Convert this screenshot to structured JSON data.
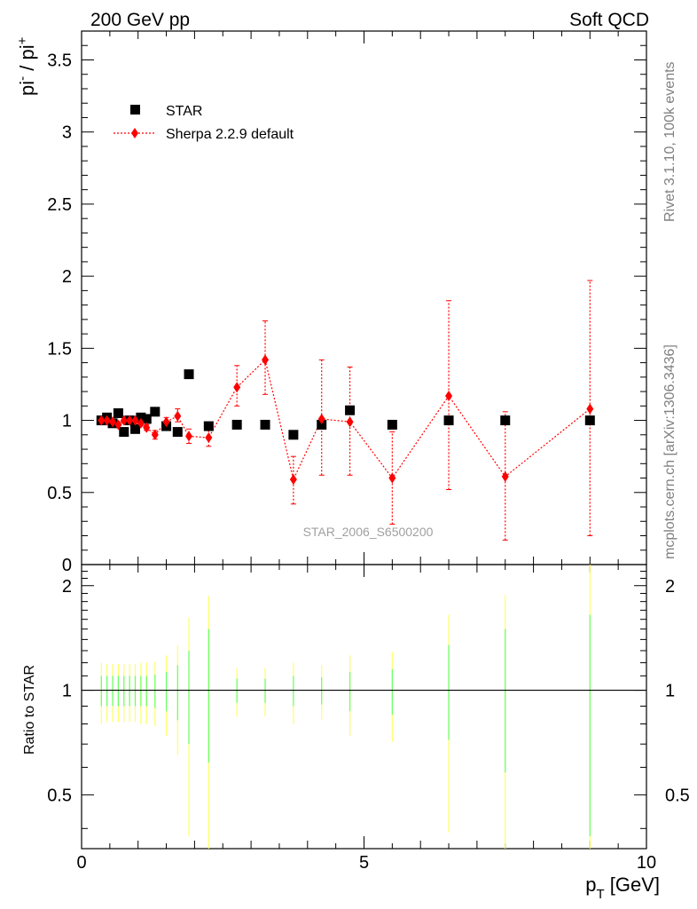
{
  "header": {
    "left": "200 GeV pp",
    "right": "Soft QCD"
  },
  "side_text": {
    "top": "Rivet 3.1.10,  100k events",
    "bottom": "mcplots.cern.ch [arXiv:1306.3436]"
  },
  "watermark": "STAR_2006_S6500200",
  "colors": {
    "data": "#000000",
    "mc": "#ff0000",
    "band_yellow": "#ffff66",
    "band_green": "#66ff66"
  },
  "chart_data": [
    {
      "type": "scatter",
      "ylabel_main": "pi",
      "ylabel_sup1": "-",
      "ylabel_mid": " / pi",
      "ylabel_sup2": "+",
      "xlim": [
        0,
        10
      ],
      "ylim": [
        0,
        3.7
      ],
      "yticks": [
        {
          "v": 0,
          "t": "0"
        },
        {
          "v": 0.5,
          "t": "0.5"
        },
        {
          "v": 1,
          "t": "1"
        },
        {
          "v": 1.5,
          "t": "1.5"
        },
        {
          "v": 2,
          "t": "2"
        },
        {
          "v": 2.5,
          "t": "2.5"
        },
        {
          "v": 3,
          "t": "3"
        },
        {
          "v": 3.5,
          "t": "3.5"
        }
      ],
      "legend": [
        {
          "label": "STAR",
          "marker": "square"
        },
        {
          "label": "Sherpa 2.2.9 default",
          "marker": "diamond"
        }
      ],
      "legend_position": "top-left",
      "series": [
        {
          "name": "STAR",
          "points": [
            {
              "x": 0.35,
              "y": 1.0
            },
            {
              "x": 0.45,
              "y": 1.02
            },
            {
              "x": 0.55,
              "y": 0.98
            },
            {
              "x": 0.65,
              "y": 1.05
            },
            {
              "x": 0.75,
              "y": 0.92
            },
            {
              "x": 0.85,
              "y": 1.0
            },
            {
              "x": 0.95,
              "y": 0.94
            },
            {
              "x": 1.05,
              "y": 1.02
            },
            {
              "x": 1.15,
              "y": 1.01
            },
            {
              "x": 1.3,
              "y": 1.06
            },
            {
              "x": 1.5,
              "y": 0.96
            },
            {
              "x": 1.7,
              "y": 0.92
            },
            {
              "x": 1.9,
              "y": 1.32
            },
            {
              "x": 2.25,
              "y": 0.96
            },
            {
              "x": 2.75,
              "y": 0.97
            },
            {
              "x": 3.25,
              "y": 0.97
            },
            {
              "x": 3.75,
              "y": 0.9
            },
            {
              "x": 4.25,
              "y": 0.97
            },
            {
              "x": 4.75,
              "y": 1.07
            },
            {
              "x": 5.5,
              "y": 0.97
            },
            {
              "x": 6.5,
              "y": 1.0
            },
            {
              "x": 7.5,
              "y": 1.0
            },
            {
              "x": 9.0,
              "y": 1.0
            }
          ]
        },
        {
          "name": "Sherpa 2.2.9 default",
          "points": [
            {
              "x": 0.35,
              "y": 1.0,
              "lo": 0.98,
              "hi": 1.02
            },
            {
              "x": 0.45,
              "y": 1.0,
              "lo": 0.98,
              "hi": 1.02
            },
            {
              "x": 0.55,
              "y": 0.99,
              "lo": 0.97,
              "hi": 1.01
            },
            {
              "x": 0.65,
              "y": 0.97,
              "lo": 0.95,
              "hi": 0.99
            },
            {
              "x": 0.75,
              "y": 1.0,
              "lo": 0.98,
              "hi": 1.02
            },
            {
              "x": 0.85,
              "y": 1.0,
              "lo": 0.98,
              "hi": 1.02
            },
            {
              "x": 0.95,
              "y": 1.0,
              "lo": 0.98,
              "hi": 1.02
            },
            {
              "x": 1.05,
              "y": 0.98,
              "lo": 0.96,
              "hi": 1.0
            },
            {
              "x": 1.15,
              "y": 0.95,
              "lo": 0.93,
              "hi": 0.97
            },
            {
              "x": 1.3,
              "y": 0.9,
              "lo": 0.87,
              "hi": 0.93
            },
            {
              "x": 1.5,
              "y": 0.99,
              "lo": 0.96,
              "hi": 1.02
            },
            {
              "x": 1.7,
              "y": 1.03,
              "lo": 0.99,
              "hi": 1.08
            },
            {
              "x": 1.9,
              "y": 0.89,
              "lo": 0.84,
              "hi": 0.94
            },
            {
              "x": 2.25,
              "y": 0.88,
              "lo": 0.82,
              "hi": 0.94
            },
            {
              "x": 2.75,
              "y": 1.23,
              "lo": 1.1,
              "hi": 1.38
            },
            {
              "x": 3.25,
              "y": 1.42,
              "lo": 1.18,
              "hi": 1.69
            },
            {
              "x": 3.75,
              "y": 0.59,
              "lo": 0.42,
              "hi": 0.75
            },
            {
              "x": 4.25,
              "y": 1.01,
              "lo": 0.62,
              "hi": 1.42
            },
            {
              "x": 4.75,
              "y": 0.99,
              "lo": 0.62,
              "hi": 1.37
            },
            {
              "x": 5.5,
              "y": 0.6,
              "lo": 0.28,
              "hi": 0.92
            },
            {
              "x": 6.5,
              "y": 1.17,
              "lo": 0.52,
              "hi": 1.83
            },
            {
              "x": 7.5,
              "y": 0.61,
              "lo": 0.17,
              "hi": 1.06
            },
            {
              "x": 9.0,
              "y": 1.08,
              "lo": 0.2,
              "hi": 1.97
            }
          ]
        }
      ]
    },
    {
      "type": "scatter",
      "ylabel": "Ratio to STAR",
      "xlabel_main": "p",
      "xlabel_sub": "T",
      "xlabel_unit": " [GeV]",
      "xlim": [
        0,
        10
      ],
      "ylim": [
        0.35,
        2.3
      ],
      "reference_line": 1,
      "yticks": [
        {
          "v": 0.5,
          "t": "0.5"
        },
        {
          "v": 1,
          "t": "1"
        },
        {
          "v": 2,
          "t": "2"
        }
      ],
      "xticks": [
        {
          "v": 0,
          "t": "0"
        },
        {
          "v": 5,
          "t": "5"
        },
        {
          "v": 10,
          "t": "10"
        }
      ],
      "bands": [
        {
          "x": 0.35,
          "y_lo": 0.8,
          "y_hi": 1.2,
          "g_lo": 0.9,
          "g_hi": 1.1
        },
        {
          "x": 0.45,
          "y_lo": 0.81,
          "y_hi": 1.19,
          "g_lo": 0.9,
          "g_hi": 1.1
        },
        {
          "x": 0.55,
          "y_lo": 0.81,
          "y_hi": 1.19,
          "g_lo": 0.9,
          "g_hi": 1.1
        },
        {
          "x": 0.65,
          "y_lo": 0.81,
          "y_hi": 1.19,
          "g_lo": 0.9,
          "g_hi": 1.1
        },
        {
          "x": 0.75,
          "y_lo": 0.81,
          "y_hi": 1.19,
          "g_lo": 0.9,
          "g_hi": 1.1
        },
        {
          "x": 0.85,
          "y_lo": 0.81,
          "y_hi": 1.19,
          "g_lo": 0.9,
          "g_hi": 1.1
        },
        {
          "x": 0.95,
          "y_lo": 0.81,
          "y_hi": 1.19,
          "g_lo": 0.9,
          "g_hi": 1.1
        },
        {
          "x": 1.05,
          "y_lo": 0.8,
          "y_hi": 1.2,
          "g_lo": 0.9,
          "g_hi": 1.1
        },
        {
          "x": 1.15,
          "y_lo": 0.8,
          "y_hi": 1.2,
          "g_lo": 0.9,
          "g_hi": 1.1
        },
        {
          "x": 1.3,
          "y_lo": 0.79,
          "y_hi": 1.21,
          "g_lo": 0.89,
          "g_hi": 1.11
        },
        {
          "x": 1.5,
          "y_lo": 0.74,
          "y_hi": 1.26,
          "g_lo": 0.87,
          "g_hi": 1.13
        },
        {
          "x": 1.7,
          "y_lo": 0.65,
          "y_hi": 1.35,
          "g_lo": 0.82,
          "g_hi": 1.18
        },
        {
          "x": 1.9,
          "y_lo": 0.38,
          "y_hi": 1.62,
          "g_lo": 0.7,
          "g_hi": 1.3
        },
        {
          "x": 2.25,
          "y_lo": 0.35,
          "y_hi": 1.87,
          "g_lo": 0.62,
          "g_hi": 1.5
        },
        {
          "x": 2.75,
          "y_lo": 0.84,
          "y_hi": 1.16,
          "g_lo": 0.92,
          "g_hi": 1.08
        },
        {
          "x": 3.25,
          "y_lo": 0.84,
          "y_hi": 1.16,
          "g_lo": 0.92,
          "g_hi": 1.08
        },
        {
          "x": 3.75,
          "y_lo": 0.8,
          "y_hi": 1.2,
          "g_lo": 0.9,
          "g_hi": 1.1
        },
        {
          "x": 4.25,
          "y_lo": 0.82,
          "y_hi": 1.18,
          "g_lo": 0.91,
          "g_hi": 1.09
        },
        {
          "x": 4.75,
          "y_lo": 0.74,
          "y_hi": 1.26,
          "g_lo": 0.87,
          "g_hi": 1.13
        },
        {
          "x": 5.5,
          "y_lo": 0.71,
          "y_hi": 1.29,
          "g_lo": 0.85,
          "g_hi": 1.15
        },
        {
          "x": 6.5,
          "y_lo": 0.39,
          "y_hi": 1.65,
          "g_lo": 0.72,
          "g_hi": 1.35
        },
        {
          "x": 7.5,
          "y_lo": 0.35,
          "y_hi": 1.88,
          "g_lo": 0.58,
          "g_hi": 1.5
        },
        {
          "x": 9.0,
          "y_lo": 0.35,
          "y_hi": 2.3,
          "g_lo": 0.38,
          "g_hi": 1.65
        }
      ]
    }
  ]
}
